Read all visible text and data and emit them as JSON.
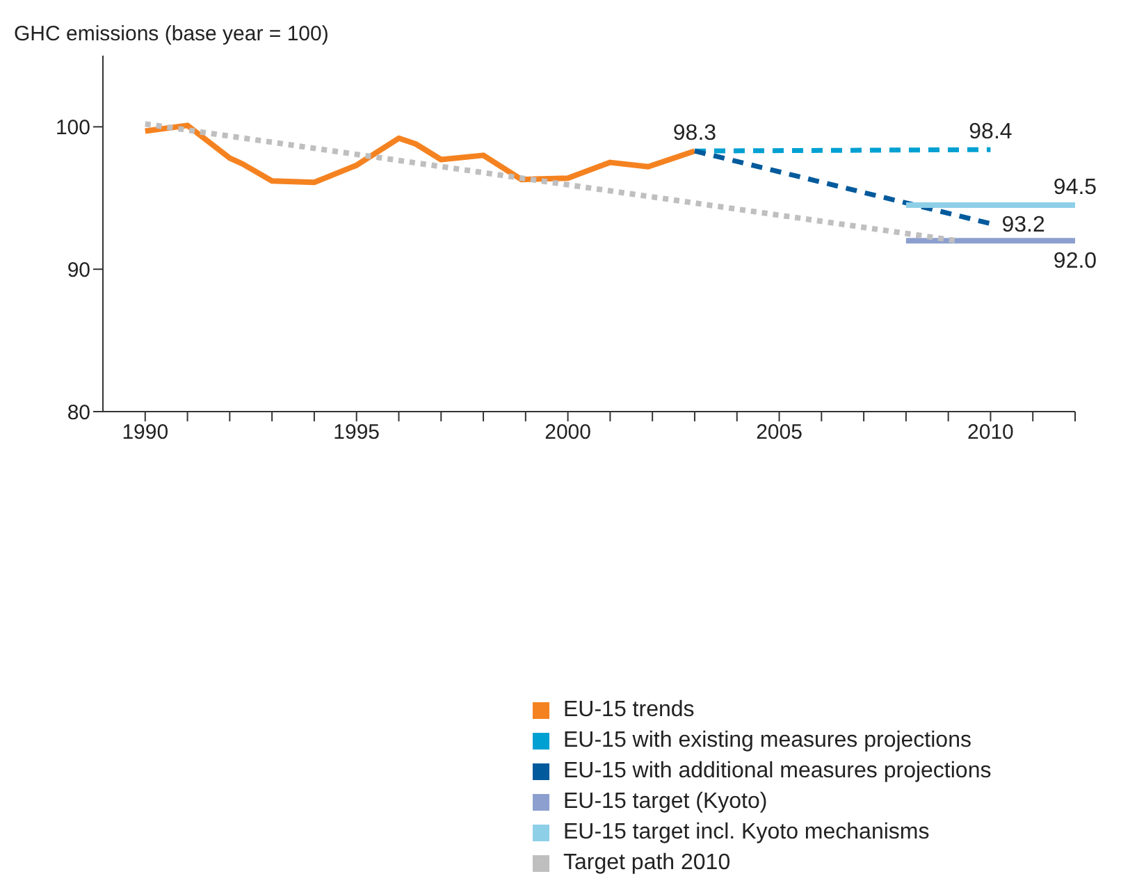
{
  "chart_data": {
    "type": "line",
    "ylabel": "GHC emissions (base year = 100)",
    "xlim": [
      1989,
      2012
    ],
    "ylim": [
      80,
      105
    ],
    "xticks": [
      1990,
      {
        "value": 1991,
        "label": null
      },
      {
        "value": 1992,
        "label": null
      },
      {
        "value": 1993,
        "label": null
      },
      {
        "value": 1994,
        "label": null
      },
      1995,
      {
        "value": 1996,
        "label": null
      },
      {
        "value": 1997,
        "label": null
      },
      {
        "value": 1998,
        "label": null
      },
      {
        "value": 1999,
        "label": null
      },
      2000,
      {
        "value": 2001,
        "label": null
      },
      {
        "value": 2002,
        "label": null
      },
      {
        "value": 2003,
        "label": null
      },
      {
        "value": 2004,
        "label": null
      },
      2005,
      {
        "value": 2006,
        "label": null
      },
      {
        "value": 2007,
        "label": null
      },
      {
        "value": 2008,
        "label": null
      },
      {
        "value": 2009,
        "label": null
      },
      2010,
      {
        "value": 2011,
        "label": null
      },
      {
        "value": 2012,
        "label": null
      }
    ],
    "yticks": [
      80,
      90,
      100
    ],
    "grid": false,
    "legend": "bottom",
    "marker": "none",
    "series": [
      {
        "name": "EU-15 trends",
        "color": "#f58220",
        "line_style": "solid",
        "x": [
          1990,
          1991,
          1992,
          1992.3,
          1993,
          1994,
          1995,
          1996,
          1996.4,
          1997,
          1998,
          1998.9,
          2000,
          2001,
          2001.9,
          2003
        ],
        "values": [
          99.7,
          100.1,
          97.8,
          97.4,
          96.2,
          96.1,
          97.3,
          99.2,
          98.8,
          97.7,
          98.0,
          96.3,
          96.4,
          97.5,
          97.2,
          98.3
        ]
      },
      {
        "name": "EU-15 with existing measures projections",
        "color": "#00a0d2",
        "line_style": "dashed",
        "x": [
          2003,
          2010
        ],
        "values": [
          98.3,
          98.4
        ]
      },
      {
        "name": "EU-15 with additional measures projections",
        "color": "#005a9c",
        "line_style": "dashed",
        "x": [
          2003,
          2010
        ],
        "values": [
          98.3,
          93.2
        ]
      },
      {
        "name": "EU-15 target (Kyoto)",
        "color": "#8c9fcf",
        "line_style": "solid",
        "x": [
          2008,
          2012
        ],
        "values": [
          92.0,
          92.0
        ]
      },
      {
        "name": "EU-15 target incl. Kyoto mechanisms",
        "color": "#8ecfe8",
        "line_style": "solid",
        "x": [
          2008,
          2012
        ],
        "values": [
          94.5,
          94.5
        ]
      },
      {
        "name": "Target path 2010",
        "color": "#bfbfbf",
        "line_style": "dotted",
        "x": [
          1990,
          2009.2
        ],
        "values": [
          100.2,
          92.0
        ]
      }
    ],
    "annotations": [
      {
        "text": "98.3",
        "x": 2003,
        "y": 98.3
      },
      {
        "text": "98.4",
        "x": 2010,
        "y": 98.4
      },
      {
        "text": "94.5",
        "x": 2012,
        "y": 94.5
      },
      {
        "text": "93.2",
        "x": 2010,
        "y": 93.2
      },
      {
        "text": "92.0",
        "x": 2012,
        "y": 92.0
      }
    ]
  }
}
